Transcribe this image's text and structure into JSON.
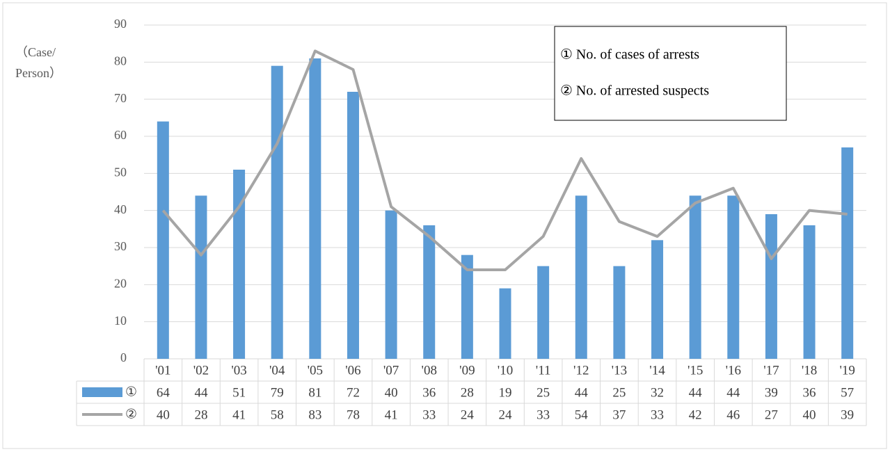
{
  "chart_data": {
    "type": "combo",
    "ylabel": [
      "（Case/",
      "Person）"
    ],
    "categories": [
      "'01",
      "'02",
      "'03",
      "'04",
      "'05",
      "'06",
      "'07",
      "'08",
      "'09",
      "'10",
      "'11",
      "'12",
      "'13",
      "'14",
      "'15",
      "'16",
      "'17",
      "'18",
      "'19"
    ],
    "series": [
      {
        "name": "① No. of cases of arrests",
        "table_label": "①",
        "type": "bar",
        "color": "#5b9bd5",
        "values": [
          64,
          44,
          51,
          79,
          81,
          72,
          40,
          36,
          28,
          19,
          25,
          44,
          25,
          32,
          44,
          44,
          39,
          36,
          57
        ]
      },
      {
        "name": "② No. of arrested suspects",
        "table_label": "②",
        "type": "line",
        "color": "#a5a5a5",
        "values": [
          40,
          28,
          41,
          58,
          83,
          78,
          41,
          33,
          24,
          24,
          33,
          54,
          37,
          33,
          42,
          46,
          27,
          40,
          39
        ]
      }
    ],
    "ylim": [
      0,
      90
    ],
    "yticks": [
      0,
      10,
      20,
      30,
      40,
      50,
      60,
      70,
      80,
      90
    ],
    "grid": true,
    "legend": "upper right"
  }
}
